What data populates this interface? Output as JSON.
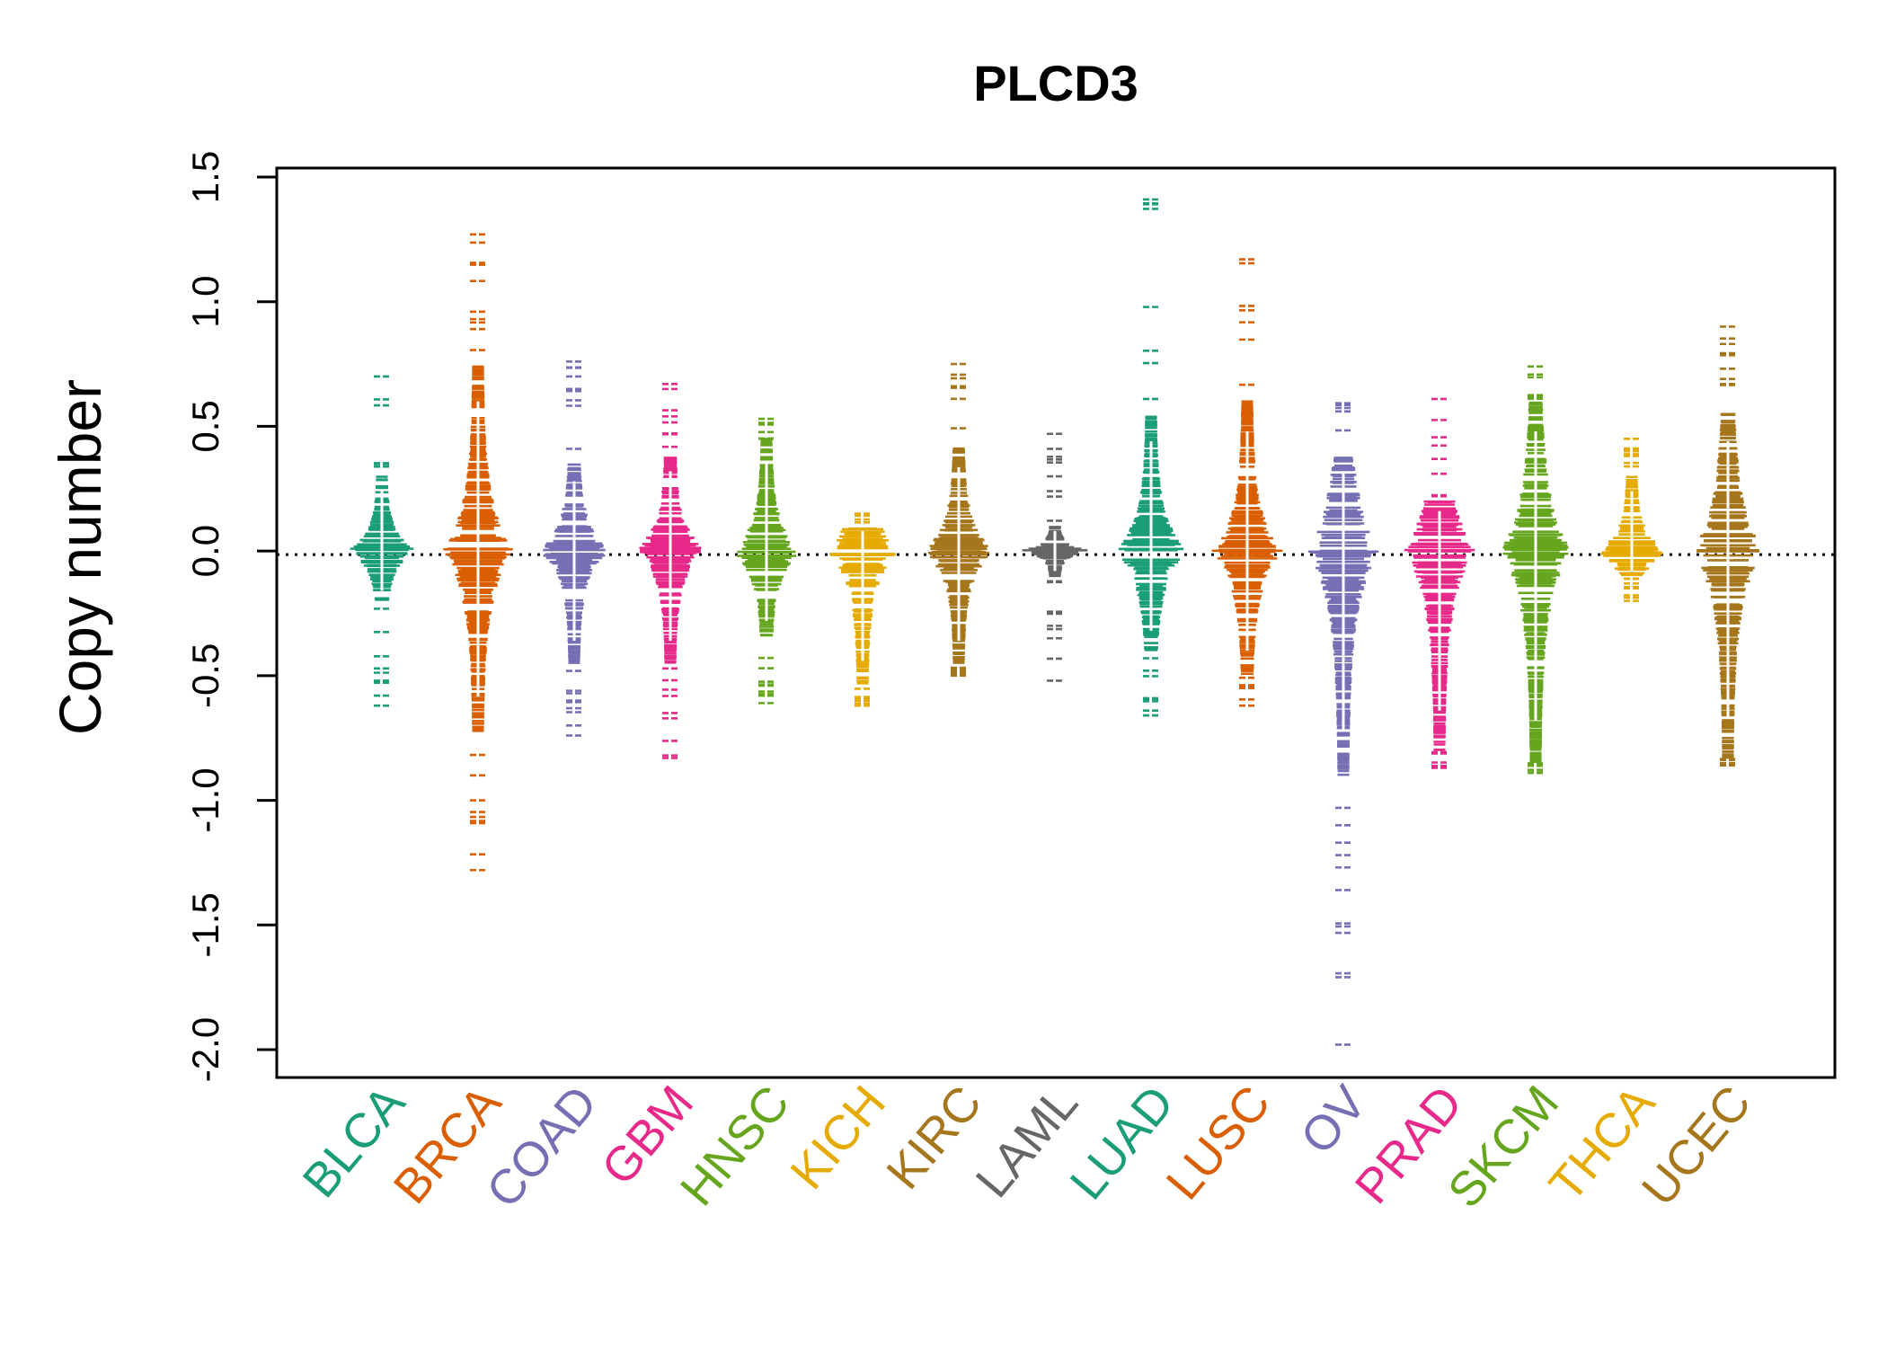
{
  "chart_data": {
    "type": "beeswarm",
    "title": "PLCD3",
    "xlabel": "",
    "ylabel": "Copy number",
    "ylim": [
      -2.0,
      1.5
    ],
    "yticks": [
      "-2.0",
      "-1.5",
      "-1.0",
      "-0.5",
      "0.0",
      "0.5",
      "1.0",
      "1.5"
    ],
    "reference_line": 0.0,
    "grid": false,
    "series": [
      {
        "name": "BLCA",
        "color": "#1B9E77",
        "max": 0.7,
        "min": -0.62,
        "dense_high": 0.3,
        "dense_low": -0.2,
        "outliers": [
          0.7,
          -0.62,
          -0.58,
          -0.52
        ]
      },
      {
        "name": "BRCA",
        "color": "#D95F02",
        "max": 1.27,
        "min": -1.28,
        "dense_high": 0.75,
        "dense_low": -0.73,
        "outliers": [
          1.27,
          0.96,
          0.93,
          0.89,
          -0.9,
          -1.0,
          -1.28
        ]
      },
      {
        "name": "COAD",
        "color": "#7570B3",
        "max": 0.76,
        "min": -0.74,
        "dense_high": 0.35,
        "dense_low": -0.45,
        "outliers": [
          0.76,
          0.7,
          0.65,
          -0.6,
          -0.7,
          -0.74
        ]
      },
      {
        "name": "GBM",
        "color": "#E7298A",
        "max": 0.67,
        "min": -0.83,
        "dense_high": 0.4,
        "dense_low": -0.45,
        "outliers": [
          0.67,
          0.54,
          -0.65,
          -0.82,
          -0.83
        ]
      },
      {
        "name": "HNSC",
        "color": "#66A61E",
        "max": 0.53,
        "min": -0.61,
        "dense_high": 0.45,
        "dense_low": -0.35,
        "outliers": [
          0.53,
          -0.47,
          -0.54,
          -0.58,
          -0.61
        ]
      },
      {
        "name": "KICH",
        "color": "#E6AB02",
        "max": 0.15,
        "min": -0.62,
        "dense_high": 0.1,
        "dense_low": -0.55,
        "outliers": [
          0.15,
          -0.62
        ]
      },
      {
        "name": "KIRC",
        "color": "#A6761D",
        "max": 0.75,
        "min": -0.5,
        "dense_high": 0.42,
        "dense_low": -0.45,
        "outliers": [
          0.75,
          -0.5
        ]
      },
      {
        "name": "LAML",
        "color": "#666666",
        "max": 0.47,
        "min": -0.52,
        "dense_high": 0.1,
        "dense_low": -0.1,
        "outliers": [
          0.47,
          0.41,
          0.24,
          -0.3,
          -0.35,
          -0.52
        ]
      },
      {
        "name": "LUAD",
        "color": "#1B9E77",
        "max": 1.41,
        "min": -0.66,
        "dense_high": 0.55,
        "dense_low": -0.4,
        "outliers": [
          1.41,
          0.61,
          -0.48,
          -0.64,
          -0.66
        ]
      },
      {
        "name": "LUSC",
        "color": "#D95F02",
        "max": 1.17,
        "min": -0.62,
        "dense_high": 0.6,
        "dense_low": -0.5,
        "outliers": [
          1.17,
          -0.55,
          -0.62
        ]
      },
      {
        "name": "OV",
        "color": "#7570B3",
        "max": 0.62,
        "min": -1.98,
        "dense_high": 0.4,
        "dense_low": -0.9,
        "outliers": [
          -1.03,
          -1.1,
          -1.17,
          -1.22,
          -1.36,
          -1.98
        ]
      },
      {
        "name": "PRAD",
        "color": "#E7298A",
        "max": 0.61,
        "min": -0.87,
        "dense_high": 0.2,
        "dense_low": -0.8,
        "outliers": [
          0.61,
          0.31,
          -0.87
        ]
      },
      {
        "name": "SKCM",
        "color": "#66A61E",
        "max": 0.74,
        "min": -0.89,
        "dense_high": 0.6,
        "dense_low": -0.85,
        "outliers": [
          0.74,
          -0.89
        ]
      },
      {
        "name": "THCA",
        "color": "#E6AB02",
        "max": 0.45,
        "min": -0.2,
        "dense_high": 0.3,
        "dense_low": -0.1,
        "outliers": [
          0.45,
          0.4,
          -0.15,
          -0.2
        ]
      },
      {
        "name": "UCEC",
        "color": "#A6761D",
        "max": 0.9,
        "min": -0.86,
        "dense_high": 0.55,
        "dense_low": -0.83,
        "outliers": [
          0.9,
          0.69,
          0.67,
          -0.86
        ]
      }
    ]
  }
}
